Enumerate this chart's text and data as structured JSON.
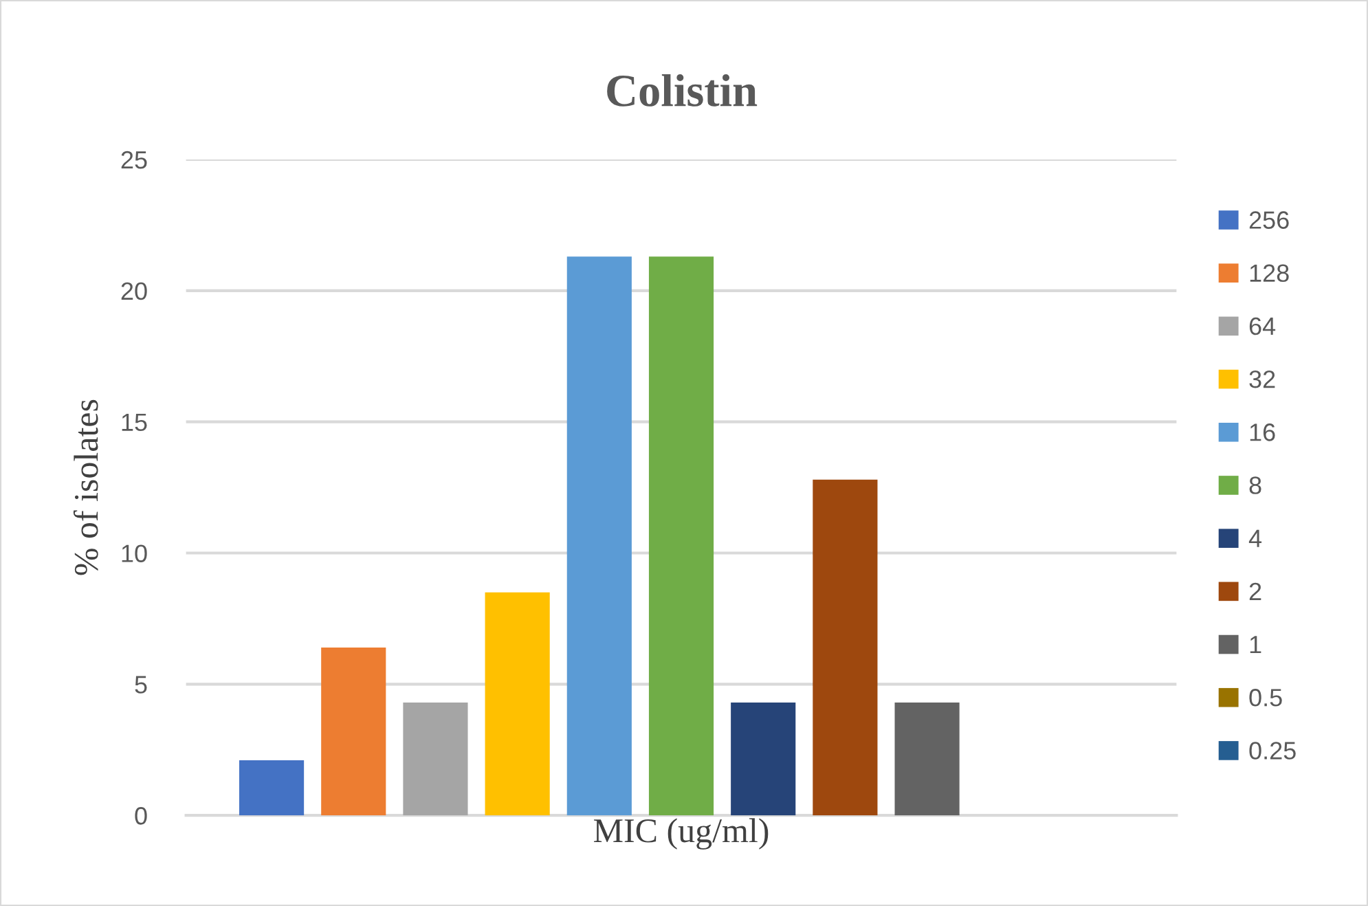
{
  "chart_data": {
    "type": "bar",
    "title": "Colistin",
    "xlabel": "MIC (ug/ml)",
    "ylabel": "% of isolates",
    "categories": [
      null
    ],
    "series": [
      {
        "name": "256",
        "color": "#4472c4",
        "values": [
          2.1
        ]
      },
      {
        "name": "128",
        "color": "#ed7d31",
        "values": [
          6.4
        ]
      },
      {
        "name": "64",
        "color": "#a5a5a5",
        "values": [
          4.3
        ]
      },
      {
        "name": "32",
        "color": "#ffc000",
        "values": [
          8.5
        ]
      },
      {
        "name": "16",
        "color": "#5b9bd5",
        "values": [
          21.3
        ]
      },
      {
        "name": "8",
        "color": "#70ad47",
        "values": [
          21.3
        ]
      },
      {
        "name": "4",
        "color": "#264478",
        "values": [
          4.3
        ]
      },
      {
        "name": "2",
        "color": "#9e480e",
        "values": [
          12.8
        ]
      },
      {
        "name": "1",
        "color": "#636363",
        "values": [
          4.3
        ]
      },
      {
        "name": "0.5",
        "color": "#997300",
        "values": [
          0
        ]
      },
      {
        "name": "0.25",
        "color": "#255e91",
        "values": [
          0
        ]
      }
    ],
    "ylim": [
      0,
      25
    ],
    "yticks": [
      0,
      5,
      10,
      15,
      20,
      25
    ],
    "grid": "y",
    "legend": "right"
  }
}
